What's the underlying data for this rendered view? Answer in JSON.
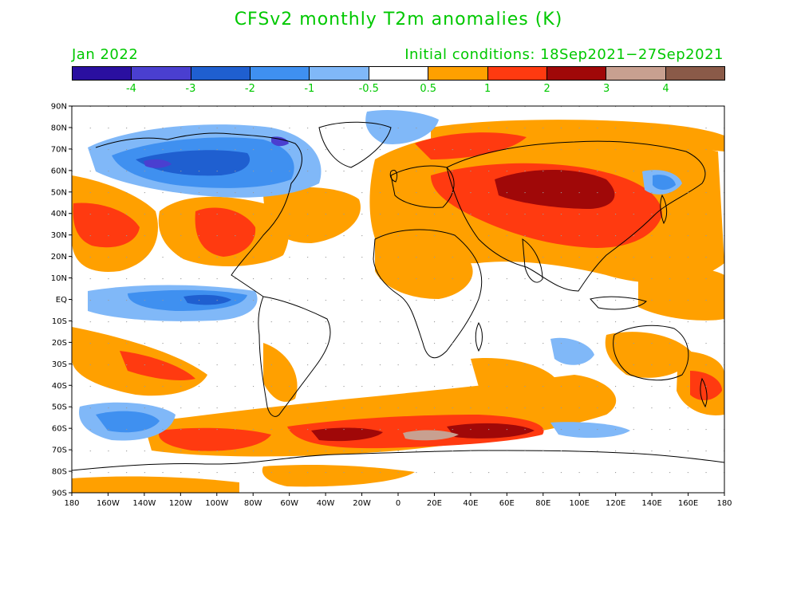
{
  "title": "CFSv2 monthly T2m anomalies (K)",
  "valid_month": "Jan 2022",
  "initial_conditions": "Initial conditions: 18Sep2021−27Sep2021",
  "colorbar": {
    "colors": [
      "#2a0fa0",
      "#4a3fd0",
      "#1f5fd0",
      "#3f90f0",
      "#80b8f8",
      "#ffffff",
      "#ffa000",
      "#ff3a10",
      "#a00808",
      "#c8a090",
      "#8a5a48"
    ],
    "labels": [
      "-4",
      "-3",
      "-2",
      "-1",
      "-0.5",
      "0.5",
      "1",
      "2",
      "3",
      "4"
    ]
  },
  "map": {
    "lat_labels": [
      "90N",
      "80N",
      "70N",
      "60N",
      "50N",
      "40N",
      "30N",
      "20N",
      "10N",
      "EQ",
      "10S",
      "20S",
      "30S",
      "40S",
      "50S",
      "60S",
      "70S",
      "80S",
      "90S"
    ],
    "lon_labels": [
      "180",
      "160W",
      "140W",
      "120W",
      "100W",
      "80W",
      "60W",
      "40W",
      "20W",
      "0",
      "20E",
      "40E",
      "60E",
      "80E",
      "100E",
      "120E",
      "140E",
      "160E",
      "180"
    ],
    "anomaly_regions": [
      {
        "name": "canada-cold",
        "level": "-2"
      },
      {
        "name": "alaska-cold",
        "level": "-2"
      },
      {
        "name": "greenland-cold",
        "level": "-1"
      },
      {
        "name": "eq-pacific-cold",
        "level": "-2"
      },
      {
        "name": "s-pacific-cold",
        "level": "-2"
      },
      {
        "name": "us-warm",
        "level": "2"
      },
      {
        "name": "siberia-warm",
        "level": "3"
      },
      {
        "name": "asia-warm",
        "level": "2"
      },
      {
        "name": "southern-ocean-warm",
        "level": "3"
      },
      {
        "name": "weddell-hot",
        "level": "4"
      }
    ]
  }
}
